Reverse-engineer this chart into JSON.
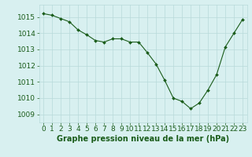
{
  "x": [
    0,
    1,
    2,
    3,
    4,
    5,
    6,
    7,
    8,
    9,
    10,
    11,
    12,
    13,
    14,
    15,
    16,
    17,
    18,
    19,
    20,
    21,
    22,
    23
  ],
  "y": [
    1015.2,
    1015.1,
    1014.9,
    1014.7,
    1014.2,
    1013.9,
    1013.55,
    1013.45,
    1013.65,
    1013.65,
    1013.45,
    1013.45,
    1012.8,
    1012.1,
    1011.1,
    1010.0,
    1009.8,
    1009.35,
    1009.7,
    1010.5,
    1011.45,
    1013.15,
    1014.0,
    1014.85
  ],
  "line_color": "#1a5c1a",
  "marker_color": "#1a5c1a",
  "bg_color": "#d8f0f0",
  "grid_color": "#b8dada",
  "xlabel": "Graphe pression niveau de la mer (hPa)",
  "xlabel_color": "#1a5c1a",
  "ylabel_ticks": [
    1009,
    1010,
    1011,
    1012,
    1013,
    1014,
    1015
  ],
  "xlim": [
    -0.5,
    23.5
  ],
  "ylim": [
    1008.5,
    1015.75
  ],
  "xtick_labels": [
    "0",
    "1",
    "2",
    "3",
    "4",
    "5",
    "6",
    "7",
    "8",
    "9",
    "10",
    "11",
    "12",
    "13",
    "14",
    "15",
    "16",
    "17",
    "18",
    "19",
    "20",
    "21",
    "22",
    "23"
  ],
  "tick_color": "#1a5c1a",
  "font_size_xlabel": 7,
  "font_size_ticks": 6.5
}
